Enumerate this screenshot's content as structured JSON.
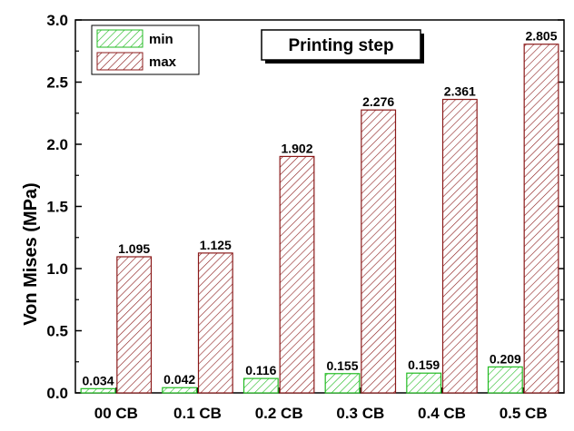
{
  "chart_data": {
    "type": "bar",
    "categories": [
      "00 CB",
      "0.1 CB",
      "0.2 CB",
      "0.3 CB",
      "0.4 CB",
      "0.5 CB"
    ],
    "series": [
      {
        "name": "min",
        "values": [
          0.034,
          0.042,
          0.116,
          0.155,
          0.159,
          0.209
        ],
        "color": "#22bb22",
        "labels": [
          "0.034",
          "0.042",
          "0.116",
          "0.155",
          "0.159",
          "0.209"
        ]
      },
      {
        "name": "max",
        "values": [
          1.095,
          1.125,
          1.902,
          2.276,
          2.361,
          2.805
        ],
        "color": "#8b1a1a",
        "labels": [
          "1.095",
          "1.125",
          "1.902",
          "2.276",
          "2.361",
          "2.805"
        ]
      }
    ],
    "title": "",
    "annotation": "Printing step",
    "xlabel": "",
    "ylabel": "Von Mises (MPa)",
    "ylim": [
      0,
      3.0
    ],
    "yticks": [
      "0.0",
      "0.5",
      "1.0",
      "1.5",
      "2.0",
      "2.5",
      "3.0"
    ],
    "ytick_values": [
      0,
      0.5,
      1.0,
      1.5,
      2.0,
      2.5,
      3.0
    ],
    "legend_position": "top-left",
    "grid": false,
    "fill_pattern": "diagonal-hatch"
  }
}
